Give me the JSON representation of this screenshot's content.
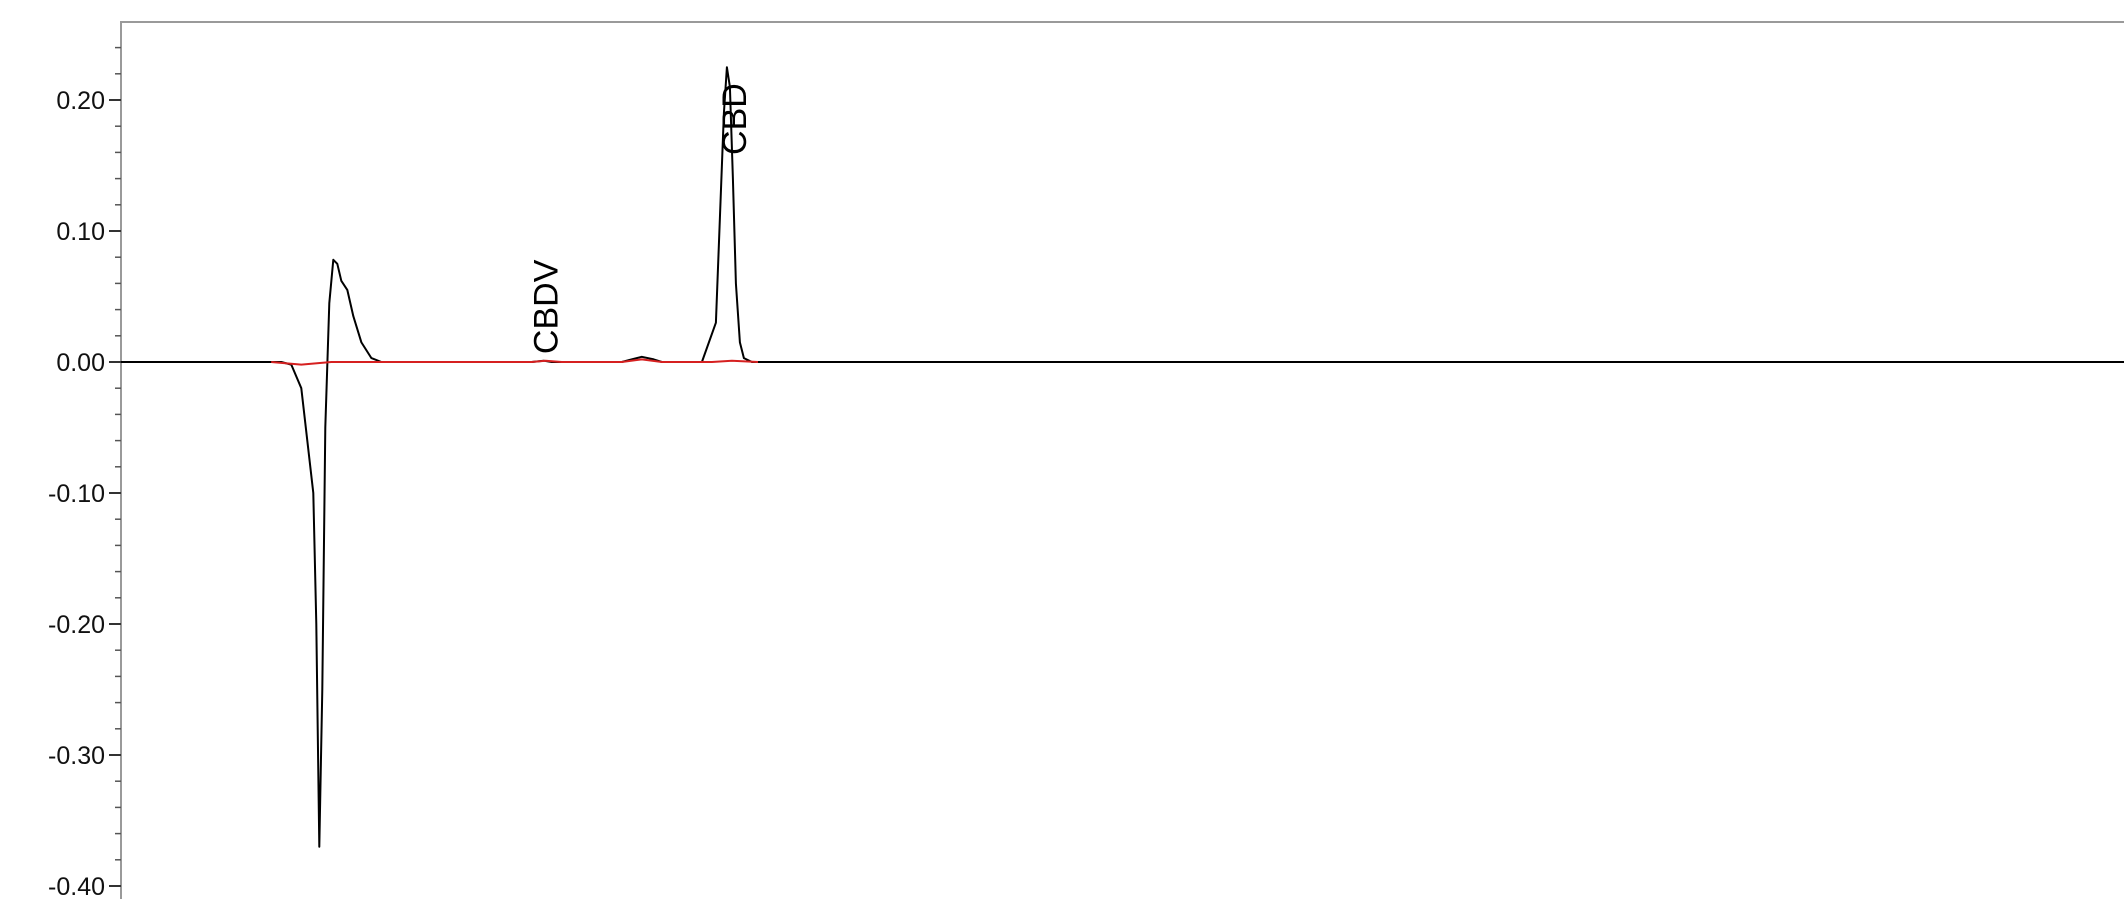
{
  "chart_data": {
    "type": "line",
    "title": "",
    "xlabel": "",
    "ylabel": "",
    "ylim": [
      -0.4,
      0.25
    ],
    "xlim": [
      0,
      100
    ],
    "yticks": [
      {
        "value": 0.2,
        "label": "0.20"
      },
      {
        "value": 0.1,
        "label": "0.10"
      },
      {
        "value": 0.0,
        "label": "0.00"
      },
      {
        "value": -0.1,
        "label": "-0.10"
      },
      {
        "value": -0.2,
        "label": "-0.20"
      },
      {
        "value": -0.3,
        "label": "-0.30"
      },
      {
        "value": -0.4,
        "label": "-0.40"
      }
    ],
    "grid": false,
    "legend": "none",
    "series": [
      {
        "color": "#000000",
        "x": [
          0,
          5,
          8,
          8.5,
          9.0,
          9.3,
          9.6,
          9.75,
          9.9,
          10.05,
          10.2,
          10.4,
          10.6,
          10.8,
          11.0,
          11.3,
          11.6,
          12.0,
          12.5,
          13.0,
          15,
          18,
          20.5,
          21.1,
          21.5,
          22,
          25,
          25.5,
          26.0,
          26.6,
          27,
          29,
          29.7,
          29.9,
          30.1,
          30.25,
          30.4,
          30.55,
          30.7,
          30.9,
          31.1,
          31.5,
          32.5,
          40,
          60,
          80,
          100
        ],
        "y": [
          0.0,
          0.0,
          0.0,
          -0.002,
          -0.02,
          -0.06,
          -0.1,
          -0.2,
          -0.37,
          -0.25,
          -0.05,
          0.045,
          0.078,
          0.075,
          0.062,
          0.055,
          0.035,
          0.015,
          0.003,
          0.0,
          0.0,
          0.0,
          0.0,
          0.001,
          0.0,
          0.0,
          0.0,
          0.002,
          0.004,
          0.002,
          0.0,
          0.0,
          0.03,
          0.11,
          0.19,
          0.225,
          0.21,
          0.14,
          0.06,
          0.015,
          0.003,
          0.0,
          0.0,
          0.0,
          0.0,
          0.0,
          0.0
        ]
      },
      {
        "color": "#d62020",
        "x": [
          7.5,
          9.0,
          10.5,
          20.5,
          21.2,
          22.0,
          25.0,
          26.0,
          27.0,
          29.5,
          30.5,
          31.8
        ],
        "y": [
          0.0,
          -0.002,
          0.0,
          0.0,
          0.001,
          0.0,
          0.0,
          0.002,
          0.0,
          0.0,
          0.001,
          0.0
        ]
      }
    ],
    "annotations": [
      {
        "text": "CBDV",
        "x": 21.2,
        "y": 0.003
      },
      {
        "text": "CBD",
        "x": 30.6,
        "y": 0.155
      }
    ]
  }
}
